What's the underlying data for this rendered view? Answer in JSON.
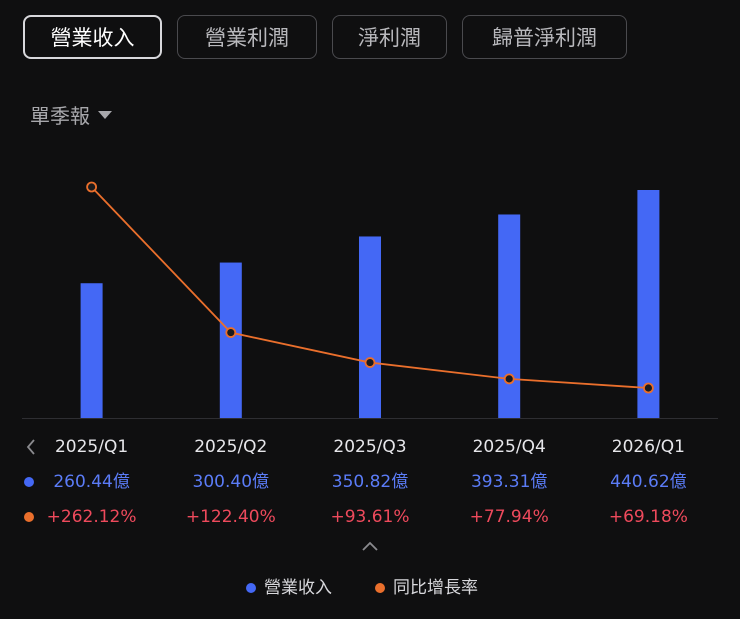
{
  "tabs": [
    "營業收入",
    "營業利潤",
    "淨利潤",
    "歸普淨利潤"
  ],
  "period_selector": "單季報",
  "chart_data": {
    "type": "bar_line",
    "categories": [
      "2025/Q1",
      "2025/Q2",
      "2025/Q3",
      "2025/Q4",
      "2026/Q1"
    ],
    "series": [
      {
        "name": "營業收入",
        "color": "#4468f5",
        "kind": "bar",
        "values": [
          260.44,
          300.4,
          350.82,
          393.31,
          440.62
        ],
        "value_labels": [
          "260.44億",
          "300.40億",
          "350.82億",
          "393.31億",
          "440.62億"
        ]
      },
      {
        "name": "同比增長率",
        "color": "#ea6f2c",
        "kind": "line",
        "values": [
          262.12,
          122.4,
          93.61,
          77.94,
          69.18
        ],
        "value_labels": [
          "+262.12%",
          "+122.40%",
          "+93.61%",
          "+77.94%",
          "+69.18%"
        ]
      }
    ]
  }
}
